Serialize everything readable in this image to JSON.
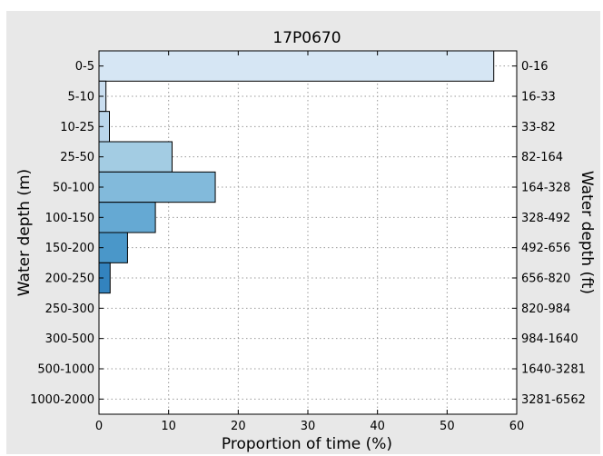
{
  "chart_data": {
    "type": "bar",
    "orientation": "horizontal",
    "title": "17P0670",
    "xlabel": "Proportion of time (%)",
    "ylabel": "Water depth (m)",
    "ylabel_right": "Water depth (ft)",
    "xlim": [
      0,
      60
    ],
    "x_ticks": [
      0,
      10,
      20,
      30,
      40,
      50,
      60
    ],
    "grid": true,
    "categories": [
      "0-5",
      "5-10",
      "10-25",
      "25-50",
      "50-100",
      "100-150",
      "150-200",
      "200-250",
      "250-300",
      "300-500",
      "500-1000",
      "1000-2000"
    ],
    "categories_right": [
      "0-16",
      "16-33",
      "33-82",
      "82-164",
      "164-328",
      "328-492",
      "492-656",
      "656-820",
      "820-984",
      "984-1640",
      "1640-3281",
      "3281-6562"
    ],
    "values": [
      56.7,
      1.0,
      1.5,
      10.5,
      16.7,
      8.1,
      4.1,
      1.6,
      0,
      0,
      0,
      0
    ],
    "colors": [
      "#d6e6f4",
      "#cadef0",
      "#bad6eb",
      "#a3cce3",
      "#82badb",
      "#65a9d3",
      "#4a97c9",
      "#3383be",
      "#2171b5",
      "#1764ab",
      "#0d57a1",
      "#084a91"
    ]
  }
}
